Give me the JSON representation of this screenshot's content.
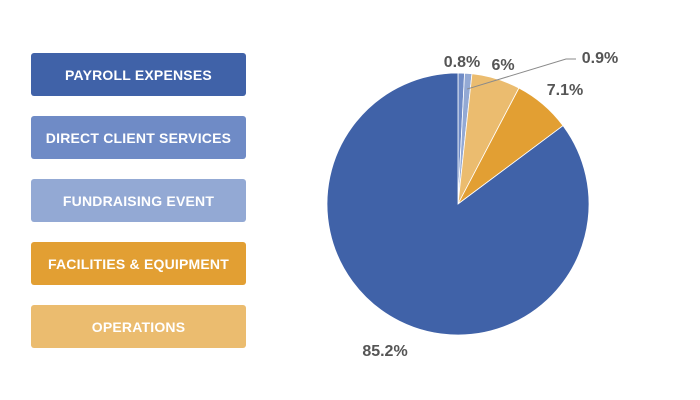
{
  "chart_data": {
    "type": "pie",
    "title": "",
    "categories": [
      "PAYROLL EXPENSES",
      "DIRECT CLIENT SERVICES",
      "FUNDRAISING EVENT",
      "FACILITIES & EQUIPMENT",
      "OPERATIONS"
    ],
    "values": [
      85.2,
      0.8,
      0.9,
      7.1,
      6
    ],
    "labels": [
      "85.2%",
      "0.8%",
      "0.9%",
      "7.1%",
      "6%"
    ],
    "colors": [
      "#4062a8",
      "#6f8bc6",
      "#93a9d4",
      "#e29f33",
      "#ebbc6f"
    ],
    "legend_position": "left",
    "start_angle_deg": 0,
    "direction": "clockwise"
  }
}
